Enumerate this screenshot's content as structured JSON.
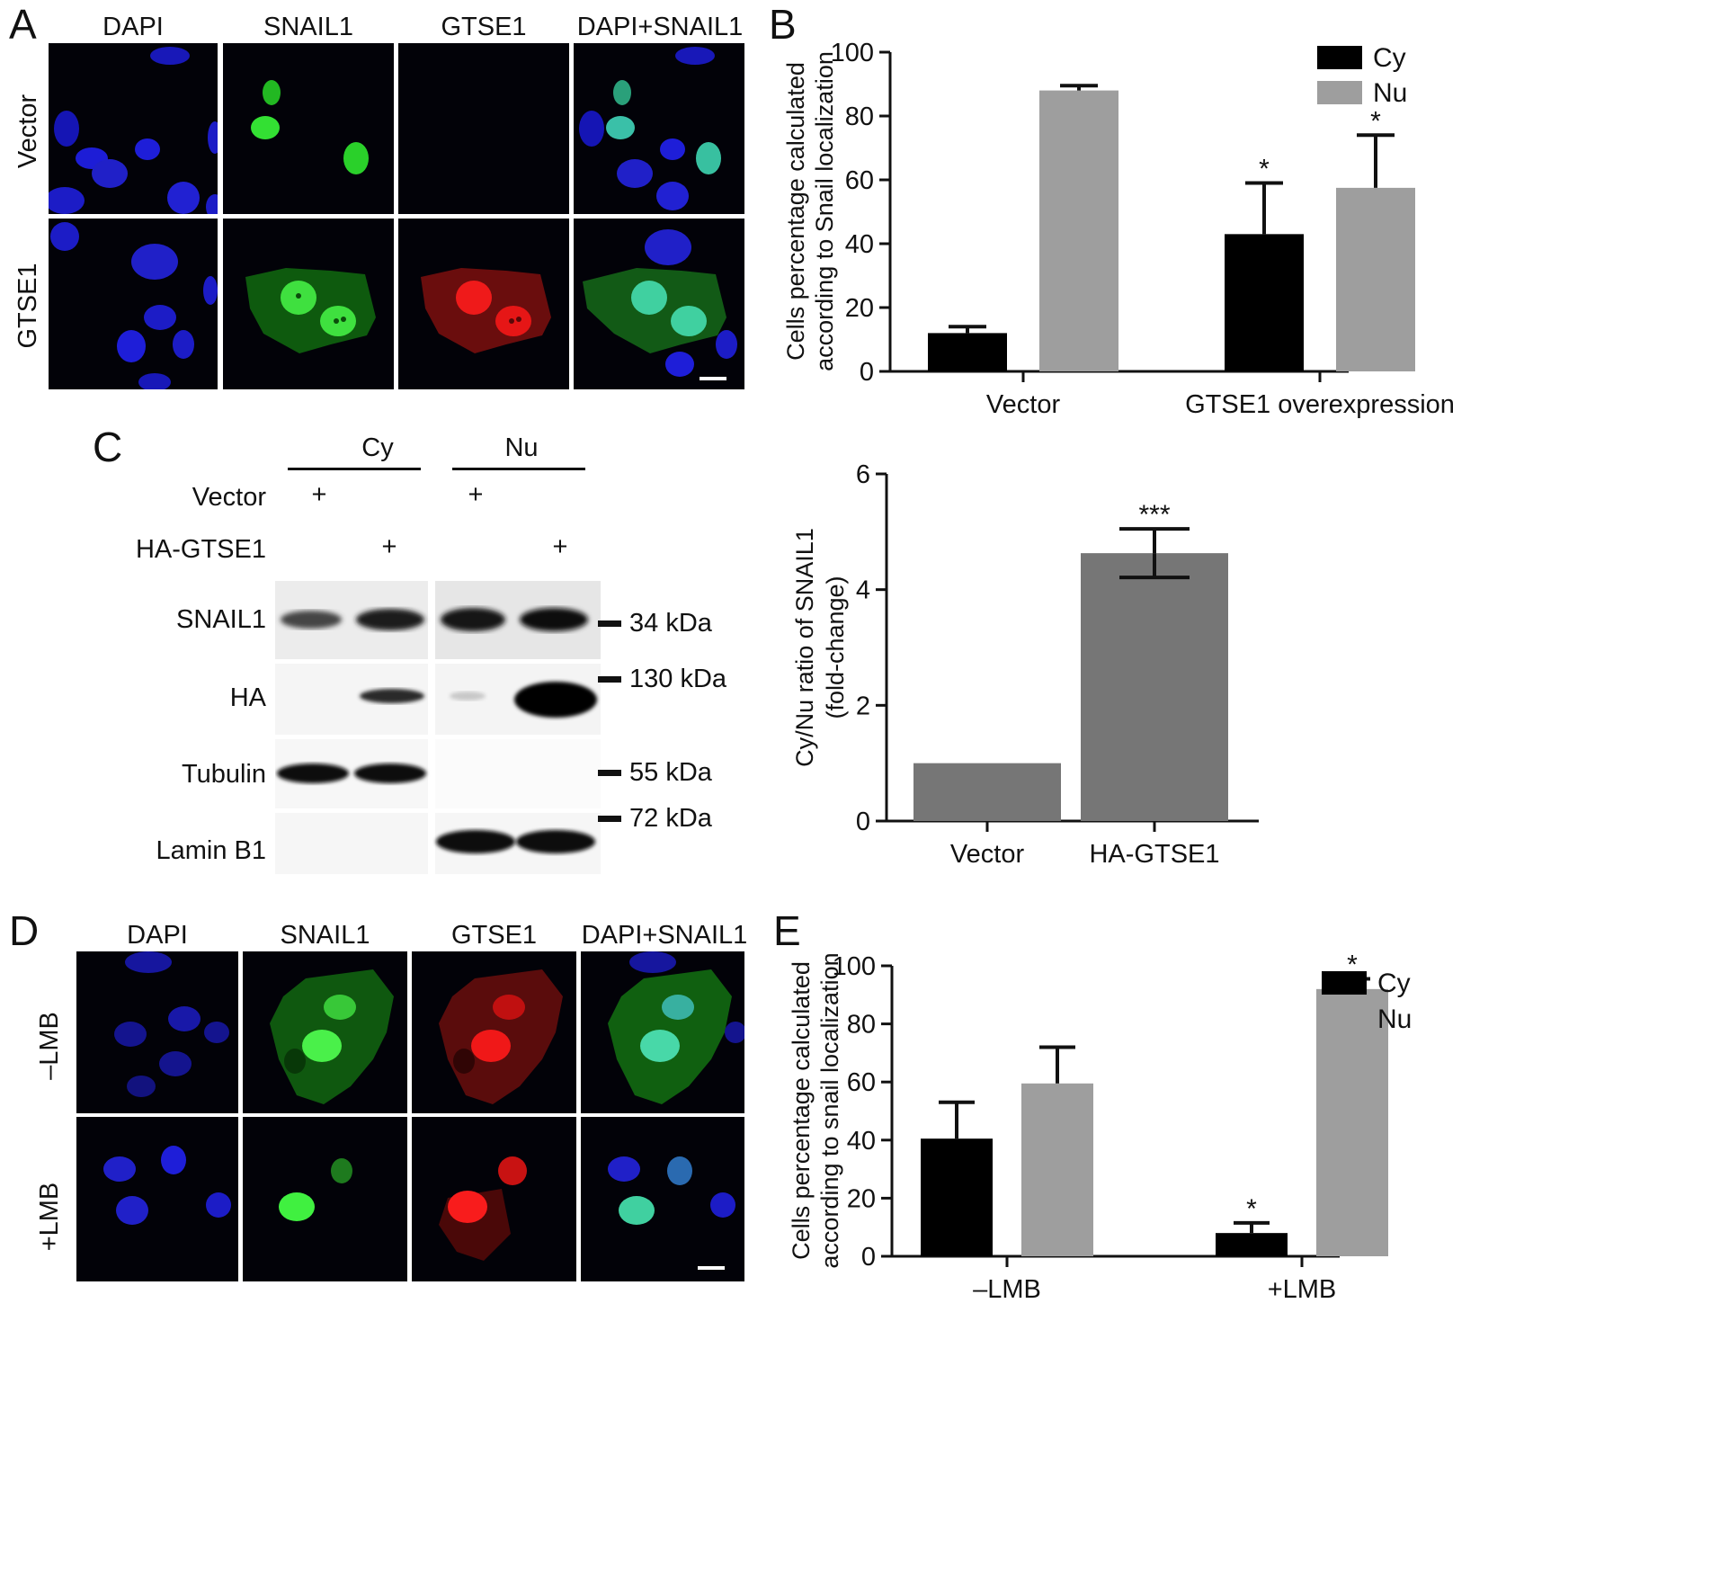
{
  "panels": {
    "A": "A",
    "B": "B",
    "C": "C",
    "D": "D",
    "E": "E"
  },
  "microscopy_A": {
    "columns": [
      "DAPI",
      "SNAIL1",
      "GTSE1",
      "DAPI+SNAIL1"
    ],
    "rows": [
      "Vector",
      "GTSE1"
    ]
  },
  "microscopy_D": {
    "columns": [
      "DAPI",
      "SNAIL1",
      "GTSE1",
      "DAPI+SNAIL1"
    ],
    "rows": [
      "–LMB",
      "+LMB"
    ]
  },
  "western_blot": {
    "groups": [
      "Cy",
      "Nu"
    ],
    "conditions": [
      "Vector",
      "HA-GTSE1"
    ],
    "plus": "+",
    "proteins": [
      "SNAIL1",
      "HA",
      "Tubulin",
      "Lamin B1"
    ],
    "markers": [
      "34 kDa",
      "130 kDa",
      "55 kDa",
      "72 kDa"
    ]
  },
  "chart_data": [
    {
      "panel": "B",
      "type": "bar",
      "categories": [
        "Vector",
        "GTSE1 overexpression"
      ],
      "series": [
        {
          "name": "Cy",
          "color": "#000000",
          "values": [
            12,
            43
          ],
          "errors": [
            2,
            16
          ],
          "significance": [
            "",
            "*"
          ]
        },
        {
          "name": "Nu",
          "color": "#9e9e9e",
          "values": [
            88,
            57.5
          ],
          "errors": [
            1.5,
            16.5
          ],
          "significance": [
            "",
            "*"
          ]
        }
      ],
      "ylabel": [
        "Cells percentage calculated",
        "according to Snail localization"
      ],
      "ylim": [
        0,
        100
      ],
      "yticks": [
        0,
        20,
        40,
        60,
        80,
        100
      ],
      "legend": "top-right"
    },
    {
      "panel": "C",
      "type": "bar",
      "categories": [
        "Vector",
        "HA-GTSE1"
      ],
      "values": [
        1.0,
        4.63
      ],
      "errors": [
        0,
        0.42
      ],
      "significance": [
        "",
        "***"
      ],
      "color": "#767676",
      "ylabel": [
        "Cy/Nu ratio of SNAIL1",
        "(fold-change)"
      ],
      "ylim": [
        0,
        6
      ],
      "yticks": [
        0,
        2,
        4,
        6
      ]
    },
    {
      "panel": "E",
      "type": "bar",
      "categories": [
        "–LMB",
        "+LMB"
      ],
      "series": [
        {
          "name": "Cy",
          "color": "#000000",
          "values": [
            40.5,
            8
          ],
          "errors": [
            12.5,
            3.5
          ],
          "significance": [
            "",
            "*"
          ]
        },
        {
          "name": "Nu",
          "color": "#9e9e9e",
          "values": [
            59.5,
            92
          ],
          "errors": [
            12.5,
            3.5
          ],
          "significance": [
            "",
            "*"
          ]
        }
      ],
      "ylabel": [
        "Cells percentage calculated",
        "according to snail localization"
      ],
      "ylim": [
        0,
        100
      ],
      "yticks": [
        0,
        20,
        40,
        60,
        80,
        100
      ],
      "legend": "top-right"
    }
  ]
}
